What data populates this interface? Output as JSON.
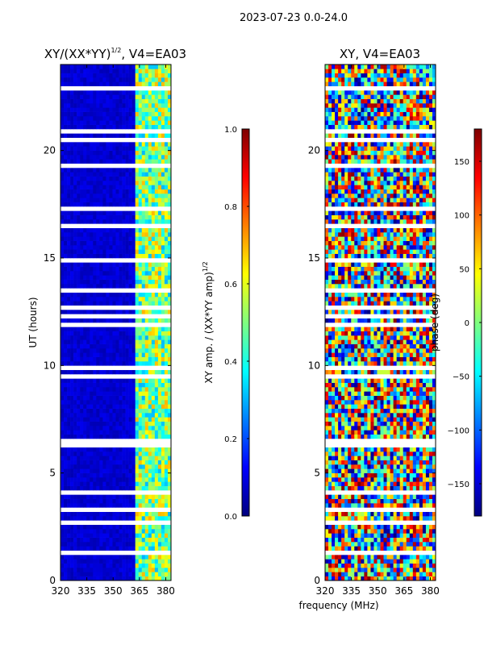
{
  "suptitle": "2023-07-23 0.0-24.0",
  "shared_xlabel": "frequency (MHz)",
  "chart_data": [
    {
      "type": "heatmap",
      "title_text": "XY/(XX*YY)",
      "title_sup": "1/2",
      "title_suffix": ", V4=EA03",
      "xlabel": "",
      "ylabel": "UT (hours)",
      "xlim": [
        320,
        383
      ],
      "ylim": [
        0,
        24
      ],
      "xticks": [
        320,
        335,
        350,
        365,
        380
      ],
      "yticks": [
        0,
        5,
        10,
        15,
        20
      ],
      "colorbar": {
        "label_text": "XY amp. / (XX*YY amp)",
        "label_sup": "1/2",
        "range": [
          0.0,
          1.0
        ],
        "ticks": [
          0.0,
          0.2,
          0.4,
          0.6,
          0.8,
          1.0
        ],
        "tick_labels": [
          "0.0",
          "0.2",
          "0.4",
          "0.6",
          "0.8",
          "1.0"
        ],
        "colormap": "jet"
      }
    },
    {
      "type": "heatmap",
      "title_text": "XY, V4=EA03",
      "xlabel": "",
      "ylabel": "",
      "xlim": [
        320,
        383
      ],
      "ylim": [
        0,
        24
      ],
      "xticks": [
        320,
        335,
        350,
        365,
        380
      ],
      "yticks": [
        0,
        5,
        10,
        15,
        20
      ],
      "colorbar": {
        "label_text": "phase (deg)",
        "range": [
          -180,
          180
        ],
        "ticks": [
          -150,
          -100,
          -50,
          0,
          50,
          100,
          150
        ],
        "tick_labels": [
          "−150",
          "−100",
          "−50",
          "0",
          "50",
          "100",
          "150"
        ],
        "colormap": "jet"
      }
    }
  ]
}
